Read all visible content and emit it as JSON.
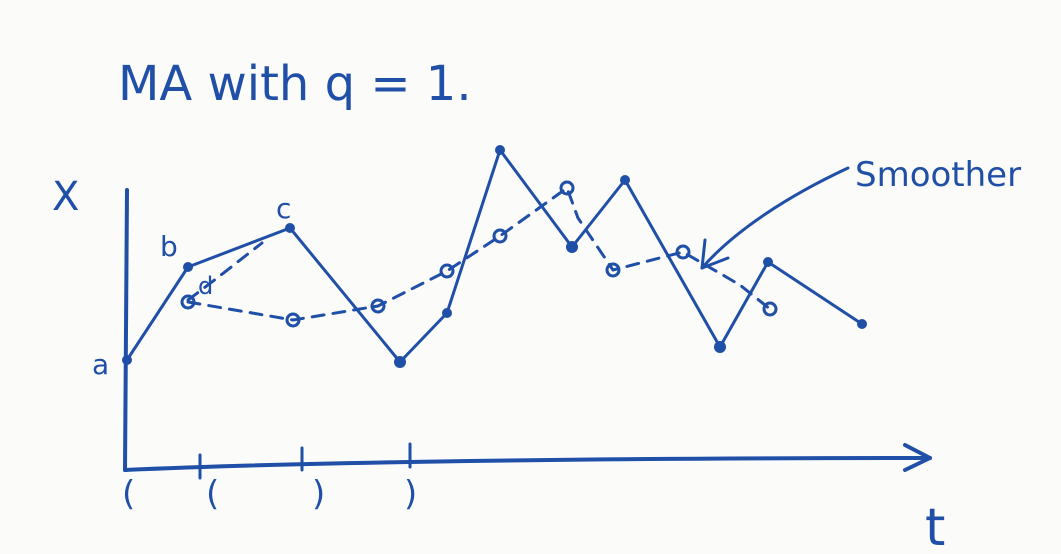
{
  "title": "MA with q = 1.",
  "axes": {
    "y_label": "X",
    "x_label": "t"
  },
  "point_labels": {
    "a": "a",
    "b": "b",
    "c": "c",
    "d": "d"
  },
  "annotation": {
    "text": "Smoother"
  },
  "bracket_marks": [
    "(",
    "(",
    ")",
    ")"
  ],
  "colors": {
    "ink": "#1f4fa6",
    "paper": "#fbfbf9"
  }
}
